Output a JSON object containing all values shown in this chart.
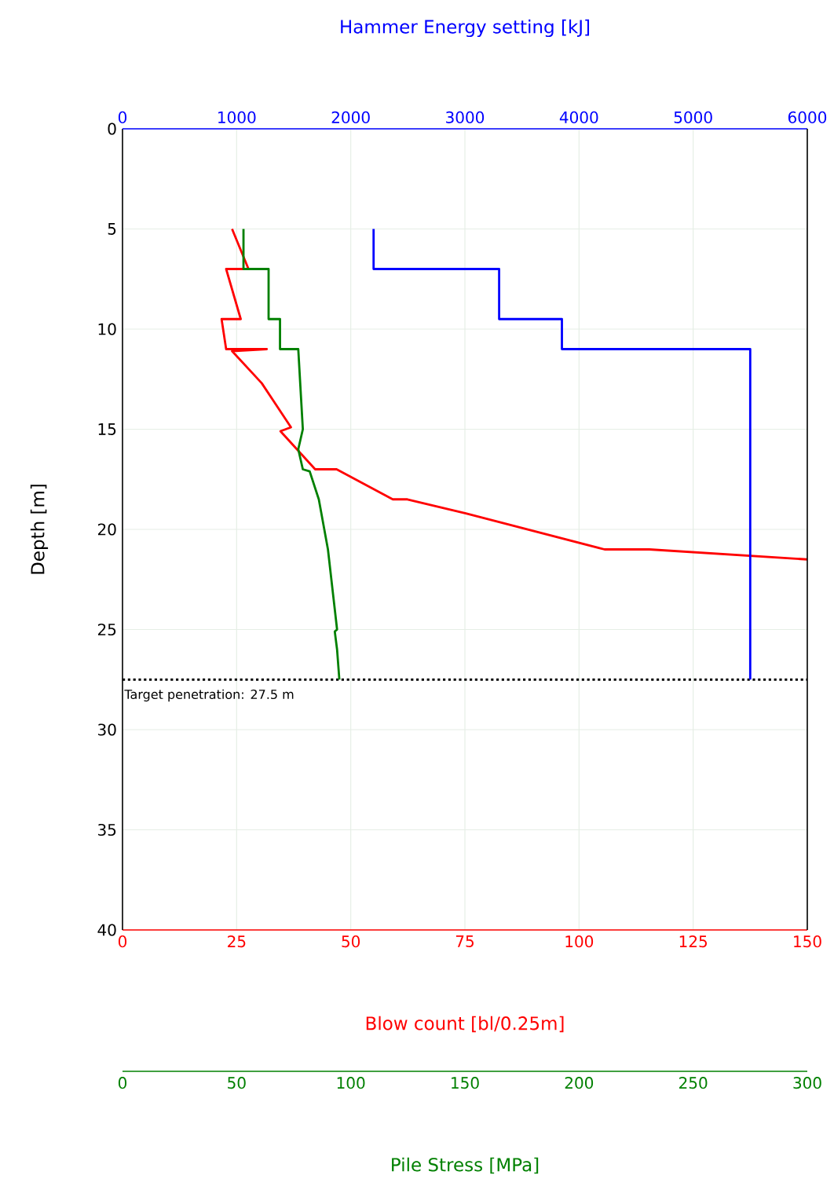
{
  "chart_data": [
    {
      "type": "line",
      "xlabel": "Blow count [bl/0.25m]",
      "x2label": "Hammer Energy setting [kJ]",
      "ylabel": "Depth [m]",
      "xlim": [
        0,
        150
      ],
      "xticks": [
        0,
        25,
        50,
        75,
        100,
        125,
        150
      ],
      "x2lim": [
        0,
        6000
      ],
      "x2ticks": [
        0,
        1000,
        2000,
        3000,
        4000,
        5000,
        6000
      ],
      "ylim": [
        40,
        0
      ],
      "yticks": [
        0,
        5,
        10,
        15,
        20,
        25,
        30,
        35,
        40
      ],
      "grid": true,
      "ref_lines": [
        {
          "axis": "y",
          "value": 27.5,
          "label": "Target penetration: 27.5 m",
          "color": "#000000",
          "line_style": "dotted"
        }
      ],
      "series": [
        {
          "color": "#ff0000",
          "x": [
            24,
            27.6,
            22.7,
            25.9,
            21.7,
            22.7,
            31.6,
            24,
            30.5,
            36.9,
            34.6,
            42.2,
            46.9,
            59.2,
            62.4,
            75.2,
            105.6,
            115.4,
            150
          ],
          "values": [
            5,
            7,
            7,
            9.5,
            9.5,
            11,
            11,
            11.1,
            12.7,
            14.9,
            15.1,
            17,
            17,
            18.5,
            18.5,
            19.2,
            21,
            21,
            21.5
          ]
        },
        {
          "color": "#0000ff",
          "axis": "x2",
          "x": [
            2200,
            2200,
            3300,
            3300,
            3850,
            3850,
            5500,
            5500
          ],
          "values": [
            5,
            7,
            7,
            9.5,
            9.5,
            11,
            11,
            27.5
          ]
        }
      ]
    },
    {
      "type": "line",
      "xlabel": "Pile Stress [MPa]",
      "xlim": [
        0,
        300
      ],
      "xticks": [
        0,
        50,
        100,
        150,
        200,
        250,
        300
      ],
      "ylim": [
        40,
        0
      ],
      "tick_labels": "x",
      "series": [
        {
          "color": "#008000",
          "x": [
            53,
            53,
            64,
            64,
            69,
            69,
            77,
            79,
            77,
            79,
            82,
            86,
            90,
            94,
            93,
            94,
            95
          ],
          "values": [
            5,
            7,
            7,
            9.5,
            9.5,
            11,
            11,
            15,
            16,
            17,
            17.1,
            18.5,
            21,
            25,
            25.1,
            26,
            27.5
          ]
        }
      ]
    }
  ]
}
